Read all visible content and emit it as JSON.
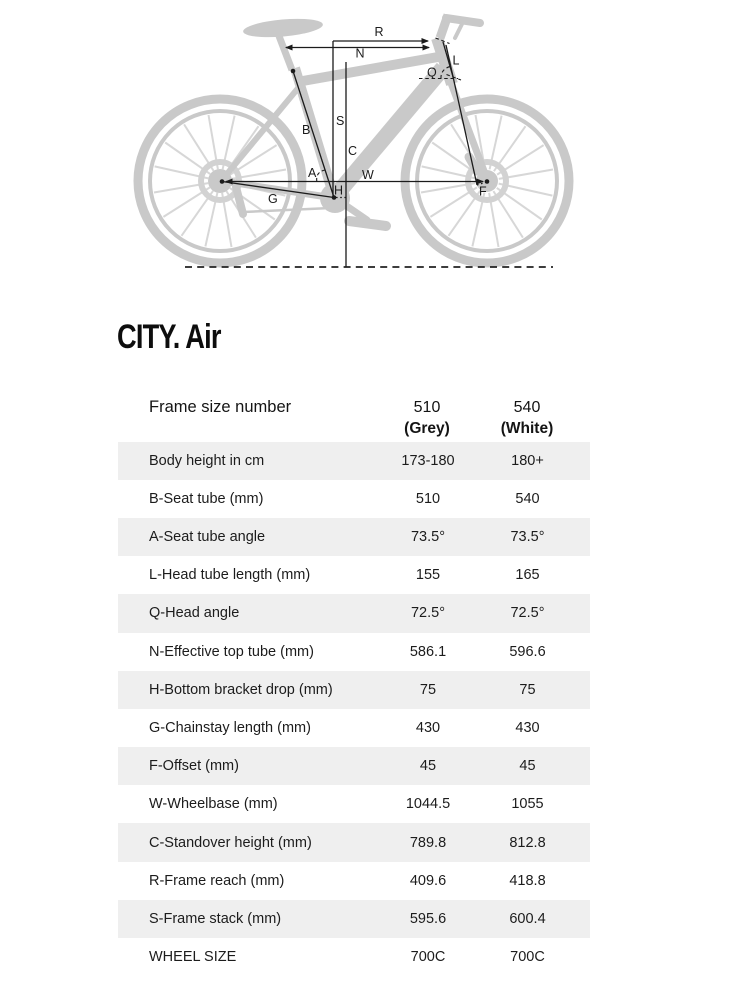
{
  "page": {
    "title": "CITY. Air"
  },
  "diagram": {
    "bike_color": "#c9c9c9",
    "line_color": "#1b1b1b",
    "labels": {
      "R": "R",
      "N": "N",
      "L": "L",
      "Q": "Q",
      "S": "S",
      "B": "B",
      "C": "C",
      "A": "A",
      "W": "W",
      "H": "H",
      "G": "G",
      "F": "F"
    }
  },
  "table": {
    "stripe_color": "#efefef",
    "header": {
      "label": "Frame size number",
      "col1_line1": "510",
      "col1_line2": "(Grey)",
      "col2_line1": "540",
      "col2_line2": "(White)"
    },
    "rows": [
      {
        "label": "Body height in cm",
        "size510": "173-180",
        "size540": "180+"
      },
      {
        "label": "B-Seat tube (mm)",
        "size510": "510",
        "size540": "540"
      },
      {
        "label": "A-Seat tube angle",
        "size510": "73.5°",
        "size540": "73.5°"
      },
      {
        "label": "L-Head tube length (mm)",
        "size510": "155",
        "size540": "165"
      },
      {
        "label": "Q-Head angle",
        "size510": "72.5°",
        "size540": "72.5°"
      },
      {
        "label": "N-Effective top tube (mm)",
        "size510": "586.1",
        "size540": "596.6"
      },
      {
        "label": "H-Bottom bracket drop (mm)",
        "size510": "75",
        "size540": "75"
      },
      {
        "label": "G-Chainstay length (mm)",
        "size510": "430",
        "size540": "430"
      },
      {
        "label": "F-Offset (mm)",
        "size510": "45",
        "size540": "45"
      },
      {
        "label": "W-Wheelbase (mm)",
        "size510": "1044.5",
        "size540": "1055"
      },
      {
        "label": "C-Standover height (mm)",
        "size510": "789.8",
        "size540": "812.8"
      },
      {
        "label": "R-Frame reach (mm)",
        "size510": "409.6",
        "size540": "418.8"
      },
      {
        "label": "S-Frame stack (mm)",
        "size510": "595.6",
        "size540": "600.4"
      },
      {
        "label": "WHEEL SIZE",
        "size510": "700C",
        "size540": "700C"
      }
    ]
  }
}
